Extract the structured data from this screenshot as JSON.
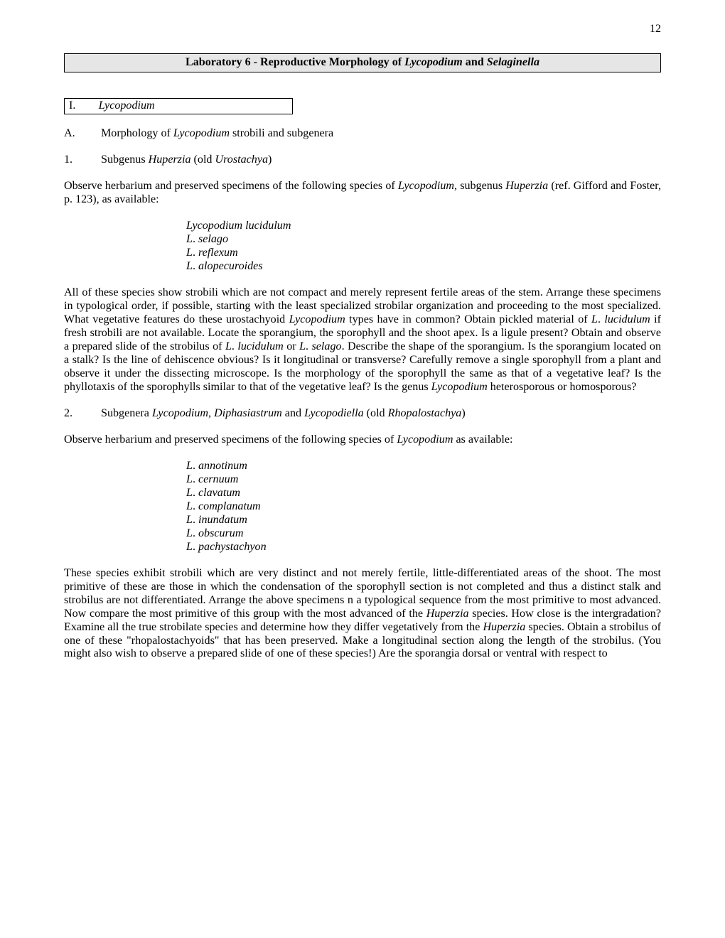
{
  "page_number": "12",
  "title_prefix": "Laboratory 6 - Reproductive Morphology of ",
  "title_it1": "Lycopodium",
  "title_mid": " and ",
  "title_it2": "Selaginella",
  "sec_I_num": "I.",
  "sec_I_it": "Lycopodium",
  "row_A_num": "A.",
  "row_A_pre": "Morphology of ",
  "row_A_it": "Lycopodium",
  "row_A_post": " strobili and subgenera",
  "row_1_num": "1.",
  "row_1_pre": "Subgenus ",
  "row_1_it1": "Huperzia",
  "row_1_mid": " (old ",
  "row_1_it2": "Urostachya",
  "row_1_post": ")",
  "p1_a": "Observe herbarium and preserved specimens of the following species of ",
  "p1_it1": "Lycopodium",
  "p1_b": ", subgenus ",
  "p1_it2": "Huperzia",
  "p1_c": " (ref. Gifford and Foster, p. 123), as available:",
  "sp1_l1": "Lycopodium lucidulum",
  "sp1_l2a": "L",
  "sp1_l2b": "selago",
  "sp1_l3a": "L",
  "sp1_l3b": "reflexum",
  "sp1_l4a": "L",
  "sp1_l4b": "alopecuroides",
  "p2_a": "All of these species show strobili which are not compact and merely represent fertile areas of the stem.  Arrange these specimens in typological order, if possible, starting with the least specialized strobilar organization and proceeding to the most specialized.  What vegetative features do these urostachyoid ",
  "p2_it1": "Lycopodium",
  "p2_b": " types have in common?  Obtain pickled material of ",
  "p2_it2": "L",
  "p2_dot1": ". ",
  "p2_it3": "lucidulum",
  "p2_c": " if fresh strobili are not available.  Locate the sporangium, the sporophyll and the shoot apex.  Is a ligule present?  Obtain and observe a prepared slide of the strobilus of ",
  "p2_it4": "L",
  "p2_dot2": ". ",
  "p2_it5": "lucidulum",
  "p2_d": " or ",
  "p2_it6": "L",
  "p2_dot3": ". ",
  "p2_it7": "selago",
  "p2_e": ".  Describe the shape of the sporangium.  Is the sporangium located on a stalk?  Is the line of dehiscence obvious?  Is it longitudinal or transverse?  Carefully remove a single sporophyll from a plant and observe it under the dissecting microscope.  Is the morphology of the sporophyll the same as that of a vegetative leaf?  Is the phyllotaxis of the sporophylls similar to that of the vegetative leaf?  Is the genus ",
  "p2_it8": "Lycopodium",
  "p2_f": " heterosporous or homosporous?",
  "row_2_num": "2.",
  "row_2_pre": "Subgenera ",
  "row_2_it1": "Lycopodium",
  "row_2_c1": ", ",
  "row_2_it2": "Diphasiastrum",
  "row_2_c2": " and ",
  "row_2_it3": "Lycopodiella",
  "row_2_c3": " (old ",
  "row_2_it4": "Rhopalostachya",
  "row_2_c4": ")",
  "p3_a": "Observe herbarium and preserved specimens of the following species of ",
  "p3_it1": "Lycopodium",
  "p3_b": " as available:",
  "sp2_1a": "L",
  "sp2_1b": "annotinum",
  "sp2_2a": "L",
  "sp2_2b": "cernuum",
  "sp2_3a": "L",
  "sp2_3b": "clavatum",
  "sp2_4a": "L",
  "sp2_4b": "complanatum",
  "sp2_5a": "L",
  "sp2_5b": "inundatum",
  "sp2_6a": "L",
  "sp2_6b": "obscurum",
  "sp2_7a": "L",
  "sp2_7b": "pachystachyon",
  "p4_a": "These species exhibit strobili which are very distinct and not merely fertile, little-differentiated areas of the shoot.  The most primitive of these are those in which the condensation of the sporophyll section is not completed and thus a distinct stalk and strobilus are not differentiated.  Arrange the above specimens n a typological sequence from the most primitive to most advanced.   Now compare the most primitive of this group with the most advanced of the ",
  "p4_it1": "Huperzia",
  "p4_b": " species.  How close is the intergradation?  Examine all the true strobilate species and determine how they differ vegetatively from the ",
  "p4_it2": "Huperzia",
  "p4_c": " species.  Obtain a strobilus of one of these \"rhopalostachyoids\" that has been preserved.  Make a longitudinal section along the length of the strobilus.  (You might also wish to observe a prepared slide of one of these species!)  Are the sporangia dorsal or ventral with respect to"
}
